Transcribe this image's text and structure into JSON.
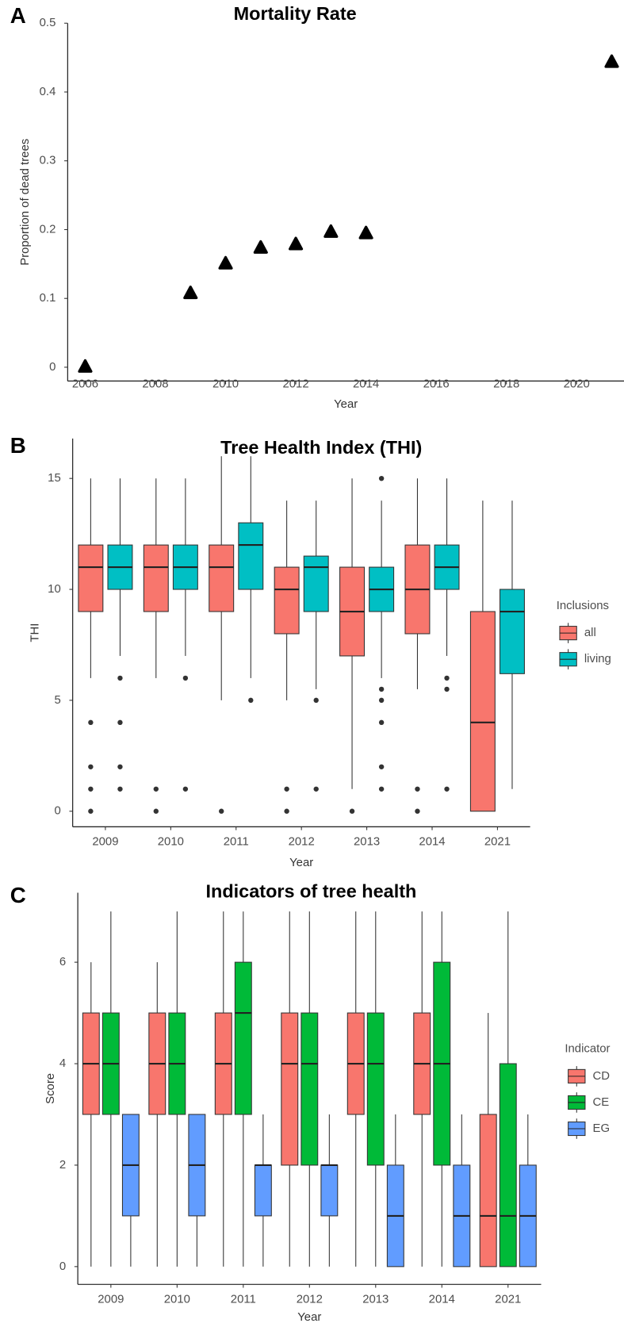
{
  "chart_data": [
    {
      "type": "scatter",
      "panel_label": "A",
      "title": "Mortality Rate",
      "x_label": "Year",
      "y_label": "Proportion of dead trees",
      "x": [
        2006,
        2009,
        2010,
        2011,
        2012,
        2013,
        2014,
        2021
      ],
      "values": [
        0,
        0.107,
        0.15,
        0.173,
        0.178,
        0.196,
        0.194,
        0.443
      ],
      "color": "#000000",
      "xlim": [
        2005.5,
        2021.35
      ],
      "xticks": [
        2006,
        2008,
        2010,
        2012,
        2014,
        2016,
        2018,
        2020
      ],
      "ylim": [
        -0.02,
        0.5
      ],
      "yticks": [
        0,
        0.1,
        0.2,
        0.3,
        0.4,
        0.5
      ],
      "grid": false
    },
    {
      "type": "boxplot",
      "panel_label": "B",
      "title": "Tree Health Index (THI)",
      "x_label": "Year",
      "y_label": "THI",
      "legend_title": "Inclusions",
      "categories": [
        "2009",
        "2010",
        "2011",
        "2012",
        "2013",
        "2014",
        "2021"
      ],
      "ylim": [
        -0.7,
        16.8
      ],
      "yticks": [
        0,
        5,
        10,
        15
      ],
      "grid": false,
      "series": [
        {
          "name": "all",
          "color": "#F8766D",
          "min": [
            6,
            6,
            5,
            5,
            1,
            5.5,
            0
          ],
          "q1": [
            9,
            9,
            9,
            8,
            7,
            8,
            0
          ],
          "median": [
            11,
            11,
            11,
            10,
            9,
            10,
            4
          ],
          "q3": [
            12,
            12,
            12,
            11,
            11,
            12,
            9
          ],
          "max": [
            15,
            15,
            16,
            14,
            15,
            15,
            14
          ],
          "outliers": [
            [
              0,
              1,
              2,
              4
            ],
            [
              0,
              1
            ],
            [
              0
            ],
            [
              0,
              1
            ],
            [
              0
            ],
            [
              0,
              1
            ],
            []
          ]
        },
        {
          "name": "living",
          "color": "#00BFC4",
          "min": [
            7,
            7,
            6,
            5.5,
            6,
            7,
            1
          ],
          "q1": [
            10,
            10,
            10,
            9,
            9,
            10,
            6.2
          ],
          "median": [
            11,
            11,
            12,
            11,
            10,
            11,
            9
          ],
          "q3": [
            12,
            12,
            13,
            11.5,
            11,
            12,
            10
          ],
          "max": [
            15,
            15,
            16,
            14,
            14,
            15,
            14
          ],
          "outliers": [
            [
              1,
              2,
              4,
              6
            ],
            [
              1,
              6
            ],
            [
              5
            ],
            [
              1,
              5
            ],
            [
              1,
              2,
              4,
              5,
              5.5,
              15
            ],
            [
              1,
              5.5,
              6
            ],
            []
          ]
        }
      ]
    },
    {
      "type": "boxplot",
      "panel_label": "C",
      "title": "Indicators of tree health",
      "x_label": "Year",
      "y_label": "Score",
      "legend_title": "Indicator",
      "categories": [
        "2009",
        "2010",
        "2011",
        "2012",
        "2013",
        "2014",
        "2021"
      ],
      "ylim": [
        -0.35,
        7.37
      ],
      "yticks": [
        0,
        2,
        4,
        6
      ],
      "grid": false,
      "series": [
        {
          "name": "CD",
          "color": "#F8766D",
          "min": [
            0,
            0,
            0,
            0,
            0,
            0,
            0
          ],
          "q1": [
            3,
            3,
            3,
            2,
            3,
            3,
            0
          ],
          "median": [
            4,
            4,
            4,
            4,
            4,
            4,
            1
          ],
          "q3": [
            5,
            5,
            5,
            5,
            5,
            5,
            3
          ],
          "max": [
            6,
            6,
            7,
            7,
            7,
            7,
            5
          ],
          "outliers": [
            [],
            [],
            [],
            [],
            [],
            [],
            []
          ]
        },
        {
          "name": "CE",
          "color": "#00BA38",
          "min": [
            0,
            0,
            0,
            0,
            0,
            0,
            0
          ],
          "q1": [
            3,
            3,
            3,
            2,
            2,
            2,
            0
          ],
          "median": [
            4,
            4,
            5,
            4,
            4,
            4,
            1
          ],
          "q3": [
            5,
            5,
            6,
            5,
            5,
            6,
            4
          ],
          "max": [
            7,
            7,
            7,
            7,
            7,
            7,
            7
          ],
          "outliers": [
            [],
            [],
            [],
            [],
            [],
            [],
            []
          ]
        },
        {
          "name": "EG",
          "color": "#619CFF",
          "min": [
            0,
            0,
            0,
            0,
            0,
            0,
            0
          ],
          "q1": [
            1,
            1,
            1,
            1,
            0,
            0,
            0
          ],
          "median": [
            2,
            2,
            2,
            2,
            1,
            1,
            1
          ],
          "q3": [
            3,
            3,
            2,
            2,
            2,
            2,
            2
          ],
          "max": [
            3,
            3,
            3,
            3,
            3,
            3,
            3
          ],
          "outliers": [
            [],
            [],
            [],
            [],
            [],
            [],
            []
          ]
        }
      ]
    }
  ]
}
